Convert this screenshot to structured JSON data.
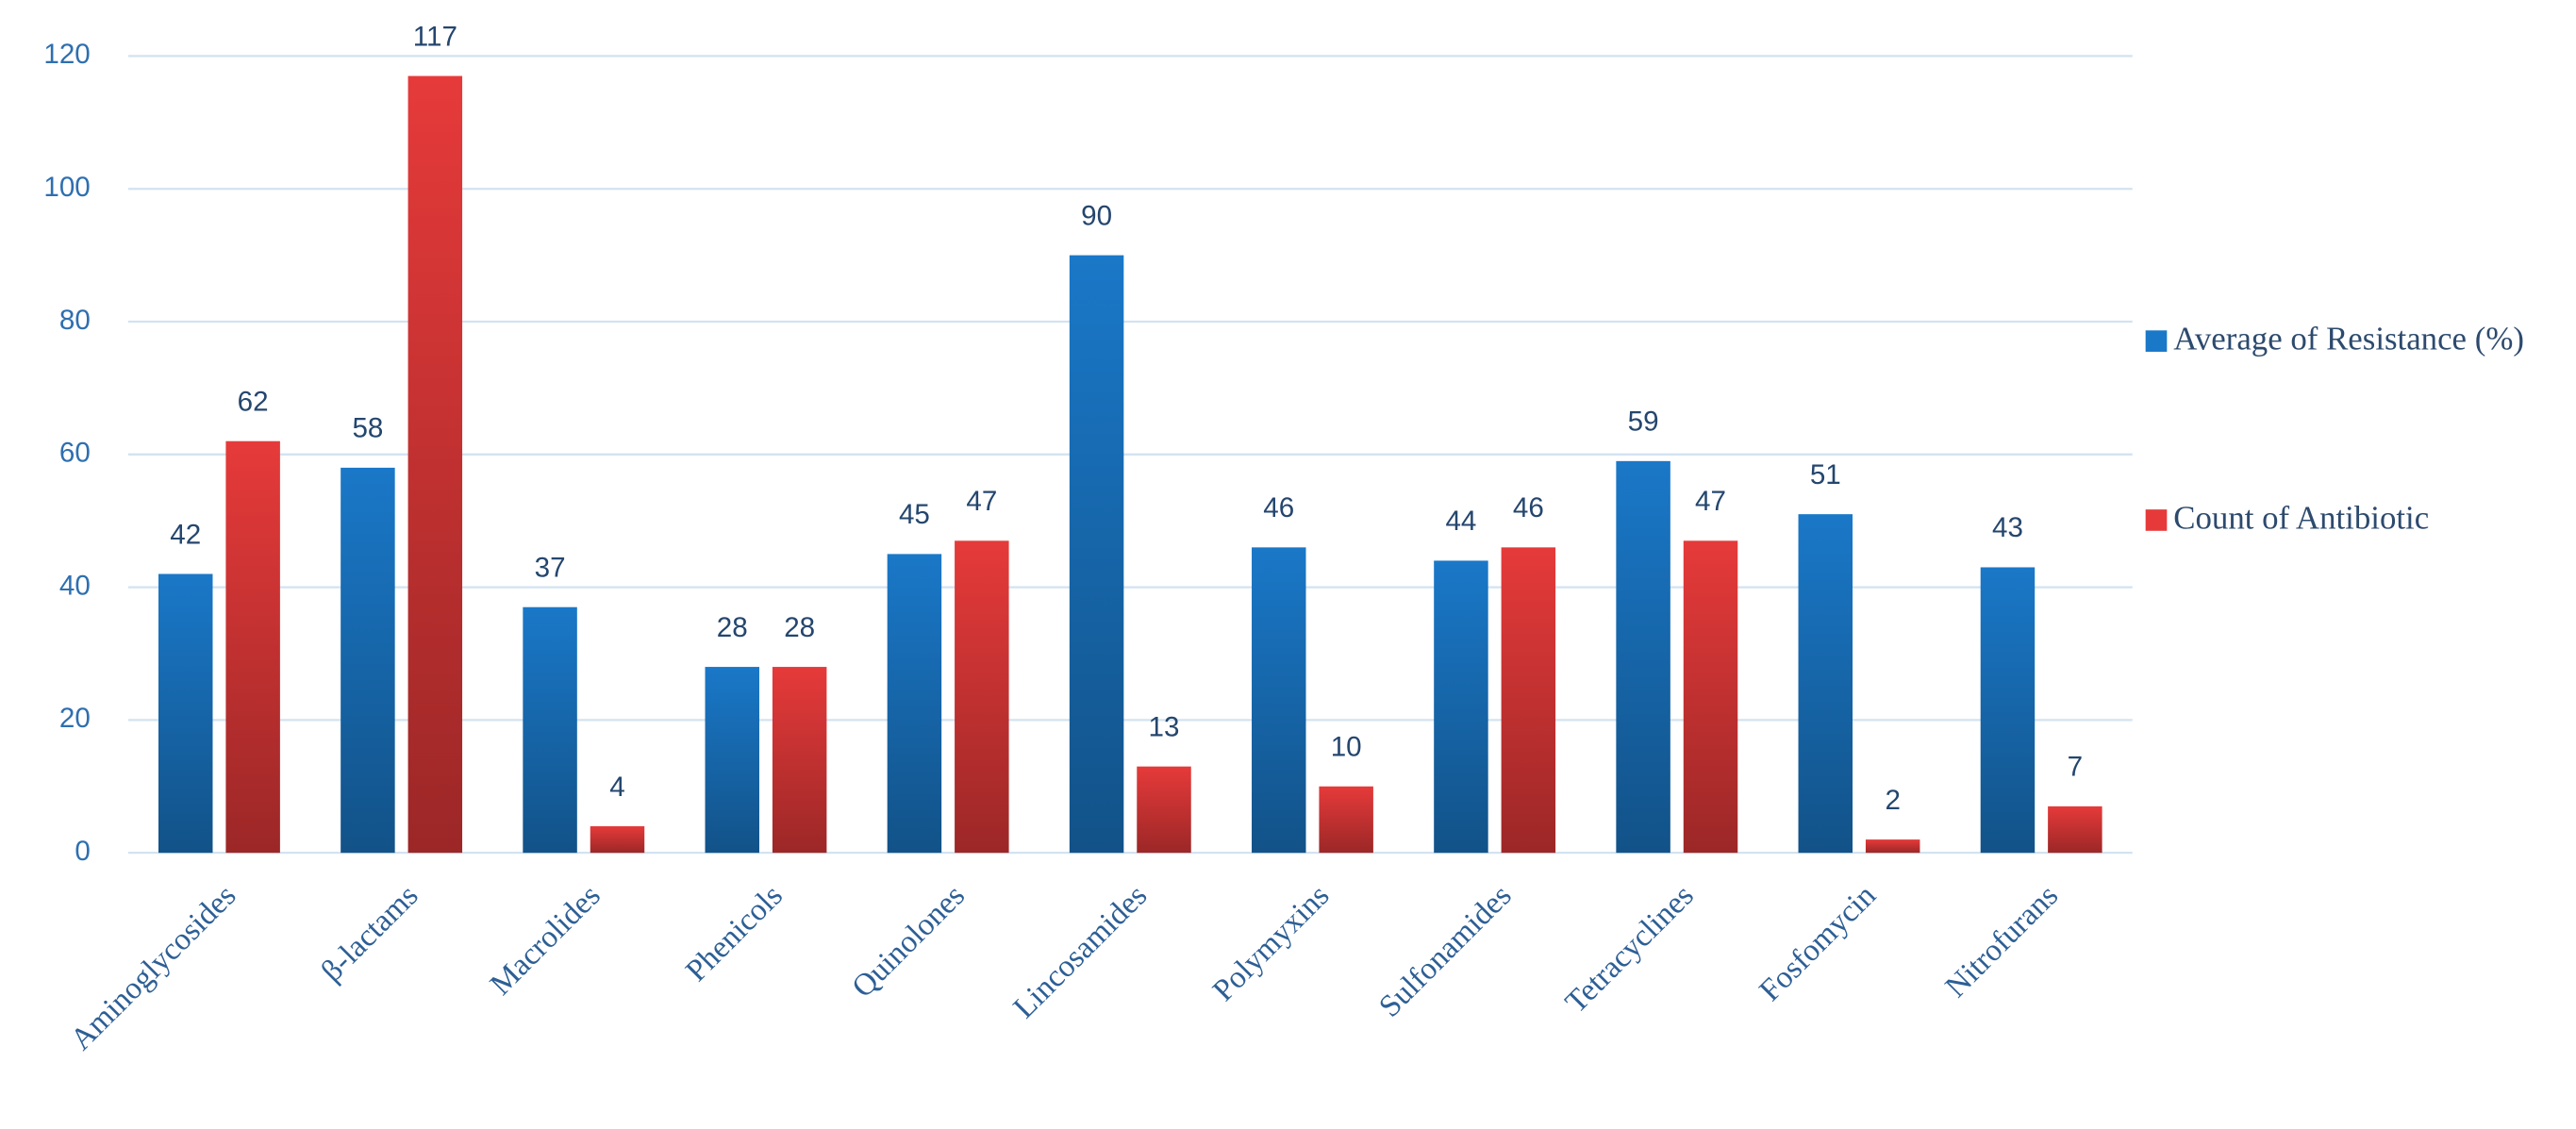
{
  "chart_data": {
    "type": "bar",
    "categories": [
      "Aminoglycosides",
      "β-lactams",
      "Macrolides",
      "Phenicols",
      "Quinolones",
      "Lincosamides",
      "Polymyxins",
      "Sulfonamides",
      "Tetracyclines",
      "Fosfomycin",
      "Nitrofurans"
    ],
    "series": [
      {
        "name": "Average of Resistance (%)",
        "color": "#1a78c8",
        "values": [
          42,
          58,
          37,
          28,
          45,
          90,
          46,
          44,
          59,
          51,
          43
        ]
      },
      {
        "name": "Count of Antibiotic",
        "color": "#e63a3a",
        "values": [
          62,
          117,
          4,
          28,
          47,
          13,
          10,
          46,
          47,
          2,
          7
        ]
      }
    ],
    "ylim": [
      0,
      120
    ],
    "yticks": [
      0,
      20,
      40,
      60,
      80,
      100,
      120
    ],
    "grid": true,
    "legend": "right"
  }
}
